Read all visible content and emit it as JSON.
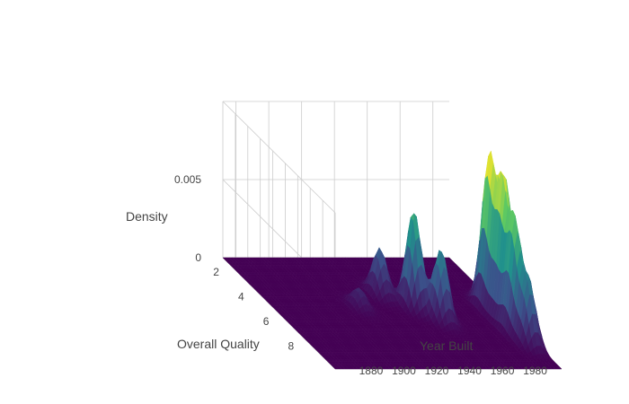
{
  "chart_data": {
    "type": "surface3d",
    "title": "",
    "x_axis": {
      "label": "Overall Quality",
      "range": [
        1,
        10
      ],
      "ticks": [
        2,
        4,
        6,
        8
      ]
    },
    "y_axis": {
      "label": "Year Built",
      "range": [
        1872,
        2010
      ],
      "ticks": [
        1880,
        1900,
        1920,
        1940,
        1960,
        1980
      ]
    },
    "z_axis": {
      "label": "Density",
      "range": [
        0,
        0.01
      ],
      "ticks": [
        0,
        0.005
      ],
      "tick_labels": [
        "0",
        "0.005"
      ]
    },
    "colorscale": "viridis",
    "colors": {
      "low": "#440154",
      "mid": "#21918c",
      "high": "#fde725",
      "grid": "#cccccc",
      "text": "#444444"
    },
    "grid": true,
    "density_peaks": [
      {
        "quality": 5,
        "year_built": 2004,
        "density": 0.0095
      },
      {
        "quality": 6,
        "year_built": 2005,
        "density": 0.0088
      },
      {
        "quality": 7,
        "year_built": 2004,
        "density": 0.0069
      },
      {
        "quality": 5,
        "year_built": 1958,
        "density": 0.0062
      },
      {
        "quality": 6,
        "year_built": 1967,
        "density": 0.0045
      },
      {
        "quality": 4,
        "year_built": 1945,
        "density": 0.003
      },
      {
        "quality": 5,
        "year_built": 1925,
        "density": 0.0012
      },
      {
        "quality": 8,
        "year_built": 2005,
        "density": 0.004
      }
    ]
  }
}
